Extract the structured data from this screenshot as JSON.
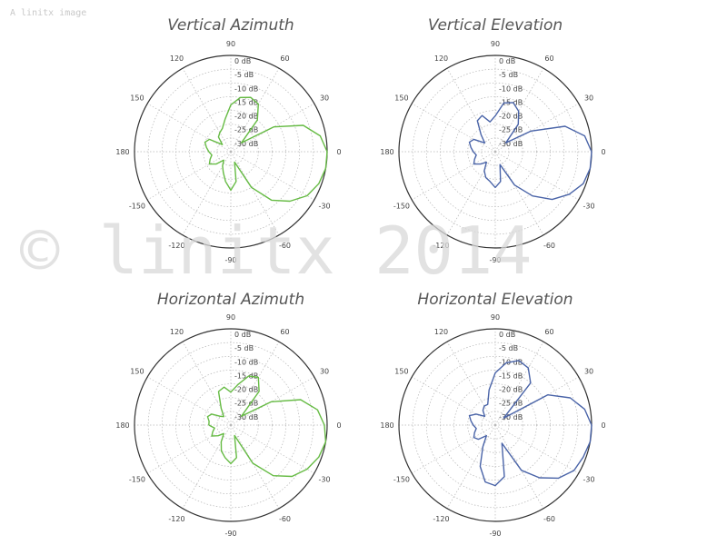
{
  "watermark": {
    "small_text": "A linitx image",
    "big_text": "© linitx 2014"
  },
  "colors": {
    "vertical": "#66bb44",
    "horizontal": "#4a64a8"
  },
  "chart_data": [
    {
      "type": "polar",
      "title": "Vertical Azimuth",
      "color": "#66bb44",
      "angle_labels": [
        "0",
        "30",
        "60",
        "90",
        "120",
        "150",
        "180",
        "-150",
        "-120",
        "-90",
        "-60",
        "-30"
      ],
      "radial_labels": [
        "0 dB",
        "-5 dB",
        "-10 dB",
        "-15 dB",
        "-20 dB",
        "-25 dB",
        "-30 dB"
      ],
      "r_range_db": [
        -35,
        0
      ],
      "series": [
        {
          "angle_deg": [
            -180,
            -170,
            -160,
            -150,
            -140,
            -130,
            -120,
            -110,
            -100,
            -90,
            -80,
            -70,
            -60,
            -50,
            -40,
            -30,
            -20,
            -10,
            0,
            10,
            20,
            30,
            40,
            50,
            60,
            70,
            80,
            90,
            100,
            110,
            120,
            130,
            140,
            150,
            160,
            170,
            180
          ],
          "gain_db": [
            -27,
            -28,
            -27,
            -26,
            -28,
            -31,
            -29,
            -27,
            -24,
            -21,
            -24,
            -31,
            -20,
            -12,
            -7,
            -3,
            -1,
            0,
            0,
            -2,
            -7,
            -17,
            -30,
            -20,
            -15,
            -14,
            -15,
            -18,
            -23,
            -26,
            -27,
            -28,
            -31,
            -26,
            -25,
            -26,
            -27
          ]
        }
      ]
    },
    {
      "type": "polar",
      "title": "Vertical Elevation",
      "color": "#4a64a8",
      "angle_labels": [
        "0",
        "30",
        "60",
        "90",
        "120",
        "150",
        "180",
        "-150",
        "-120",
        "-90",
        "-60",
        "-30"
      ],
      "radial_labels": [
        "0 dB",
        "-5 dB",
        "-10 dB",
        "-15 dB",
        "-20 dB",
        "-25 dB",
        "-30 dB"
      ],
      "r_range_db": [
        -35,
        0
      ],
      "series": [
        {
          "angle_deg": [
            -180,
            -170,
            -160,
            -150,
            -140,
            -130,
            -120,
            -110,
            -100,
            -90,
            -80,
            -70,
            -60,
            -50,
            -40,
            -30,
            -20,
            -10,
            0,
            10,
            20,
            30,
            40,
            50,
            60,
            70,
            80,
            90,
            100,
            110,
            120,
            130,
            140,
            150,
            160,
            170,
            180
          ],
          "gain_db": [
            -27,
            -28,
            -27,
            -26,
            -28,
            -30,
            -27,
            -25,
            -24,
            -22,
            -24,
            -30,
            -21,
            -14,
            -8,
            -4,
            -1,
            0,
            0,
            -2,
            -8,
            -20,
            -30,
            -22,
            -18,
            -16,
            -17,
            -22,
            -24,
            -21,
            -22,
            -27,
            -30,
            -26,
            -25,
            -26,
            -27
          ]
        }
      ]
    },
    {
      "type": "polar",
      "title": "Horizontal Azimuth",
      "color": "#66bb44",
      "angle_labels": [
        "0",
        "30",
        "60",
        "90",
        "120",
        "150",
        "180",
        "-150",
        "-120",
        "-90",
        "-60",
        "-30"
      ],
      "radial_labels": [
        "0 dB",
        "-5 dB",
        "-10 dB",
        "-15 dB",
        "-20 dB",
        "-25 dB",
        "-30 dB"
      ],
      "r_range_db": [
        -35,
        0
      ],
      "series": [
        {
          "angle_deg": [
            -180,
            -170,
            -160,
            -150,
            -140,
            -130,
            -120,
            -110,
            -100,
            -90,
            -80,
            -70,
            -60,
            -50,
            -40,
            -30,
            -20,
            -10,
            0,
            10,
            20,
            30,
            40,
            50,
            60,
            70,
            80,
            90,
            100,
            110,
            120,
            130,
            140,
            150,
            160,
            170,
            180
          ],
          "gain_db": [
            -27,
            -29,
            -28,
            -27,
            -29,
            -31,
            -28,
            -25,
            -23,
            -21,
            -23,
            -31,
            -19,
            -11,
            -6,
            -3,
            -1,
            0,
            -1,
            -3,
            -8,
            -18,
            -30,
            -19,
            -15,
            -16,
            -20,
            -23,
            -21,
            -22,
            -28,
            -31,
            -30,
            -27,
            -26,
            -27,
            -27
          ]
        }
      ]
    },
    {
      "type": "polar",
      "title": "Horizontal Elevation",
      "color": "#4a64a8",
      "angle_labels": [
        "0",
        "30",
        "60",
        "90",
        "120",
        "150",
        "180",
        "-150",
        "-120",
        "-90",
        "-60",
        "-30"
      ],
      "radial_labels": [
        "0 dB",
        "-5 dB",
        "-10 dB",
        "-15 dB",
        "-20 dB",
        "-25 dB",
        "-30 dB"
      ],
      "r_range_db": [
        -35,
        0
      ],
      "series": [
        {
          "angle_deg": [
            -180,
            -170,
            -160,
            -150,
            -140,
            -130,
            -120,
            -110,
            -100,
            -90,
            -80,
            -70,
            -60,
            -50,
            -40,
            -30,
            -20,
            -10,
            0,
            10,
            20,
            30,
            40,
            50,
            60,
            70,
            80,
            90,
            100,
            110,
            120,
            130,
            140,
            150,
            160,
            170,
            180
          ],
          "gain_db": [
            -27,
            -28,
            -27,
            -26,
            -27,
            -30,
            -26,
            -19,
            -14,
            -13,
            -16,
            -28,
            -16,
            -10,
            -5,
            -2,
            -1,
            0,
            0,
            -2,
            -6,
            -13,
            -31,
            -15,
            -11,
            -10,
            -12,
            -16,
            -22,
            -27,
            -27,
            -28,
            -30,
            -27,
            -25,
            -26,
            -27
          ]
        }
      ]
    }
  ]
}
